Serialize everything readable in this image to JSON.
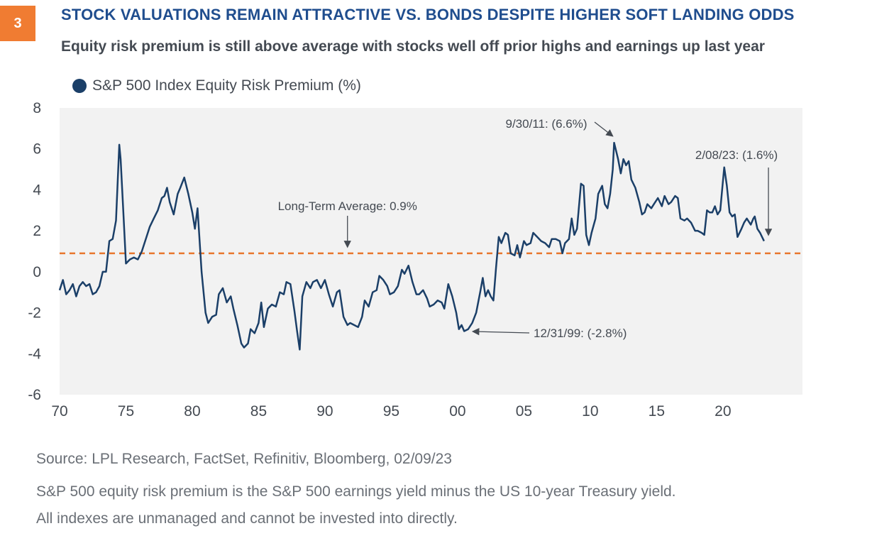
{
  "header": {
    "badge": "3",
    "title": "STOCK VALUATIONS REMAIN ATTRACTIVE VS. BONDS DESPITE HIGHER SOFT LANDING ODDS",
    "subtitle": "Equity risk premium is still above average with stocks well off prior highs and earnings up last year"
  },
  "colors": {
    "badge": "#f07c32",
    "title": "#1f4d8e",
    "series": "#1b3f68",
    "average_line": "#e8772e",
    "plot_background": "#f2f2f2",
    "text": "#444a52",
    "footnote": "#6a6f76"
  },
  "chart_data": {
    "type": "line",
    "title": "",
    "xlabel": "",
    "ylabel": "",
    "legend": "top-left",
    "grid": false,
    "ylim": [
      -6,
      8
    ],
    "xlim": [
      1970,
      2026
    ],
    "x_ticks": [
      1970,
      1975,
      1980,
      1985,
      1990,
      1995,
      2000,
      2005,
      2010,
      2015,
      2020
    ],
    "x_tick_labels": [
      "70",
      "75",
      "80",
      "85",
      "90",
      "95",
      "00",
      "05",
      "10",
      "15",
      "20"
    ],
    "y_ticks": [
      8,
      6,
      4,
      2,
      0,
      -2,
      -4,
      -6
    ],
    "y_tick_labels": [
      "8",
      "6",
      "4",
      "2",
      "0",
      "-2",
      "-4",
      "-6"
    ],
    "series": [
      {
        "name": "S&P 500 Index Equity Risk Premium (%)",
        "points": [
          [
            1970.0,
            -0.9
          ],
          [
            1970.25,
            -0.4
          ],
          [
            1970.5,
            -1.1
          ],
          [
            1970.75,
            -0.9
          ],
          [
            1971.0,
            -0.6
          ],
          [
            1971.25,
            -1.2
          ],
          [
            1971.5,
            -0.7
          ],
          [
            1971.75,
            -0.5
          ],
          [
            1972.0,
            -0.7
          ],
          [
            1972.25,
            -0.6
          ],
          [
            1972.5,
            -1.1
          ],
          [
            1972.75,
            -1.0
          ],
          [
            1973.0,
            -0.7
          ],
          [
            1973.25,
            0.0
          ],
          [
            1973.5,
            0.0
          ],
          [
            1973.75,
            1.5
          ],
          [
            1974.0,
            1.6
          ],
          [
            1974.25,
            2.5
          ],
          [
            1974.5,
            6.2
          ],
          [
            1974.6,
            5.5
          ],
          [
            1974.8,
            3.0
          ],
          [
            1975.0,
            0.4
          ],
          [
            1975.3,
            0.6
          ],
          [
            1975.6,
            0.7
          ],
          [
            1975.9,
            0.6
          ],
          [
            1976.2,
            1.0
          ],
          [
            1976.5,
            1.6
          ],
          [
            1976.8,
            2.2
          ],
          [
            1977.1,
            2.6
          ],
          [
            1977.4,
            3.0
          ],
          [
            1977.7,
            3.6
          ],
          [
            1977.9,
            3.7
          ],
          [
            1978.1,
            4.1
          ],
          [
            1978.3,
            3.4
          ],
          [
            1978.6,
            2.8
          ],
          [
            1978.9,
            3.8
          ],
          [
            1979.1,
            4.1
          ],
          [
            1979.4,
            4.6
          ],
          [
            1979.7,
            3.8
          ],
          [
            1980.0,
            2.9
          ],
          [
            1980.2,
            2.1
          ],
          [
            1980.4,
            3.1
          ],
          [
            1980.7,
            0.0
          ],
          [
            1981.0,
            -2.0
          ],
          [
            1981.2,
            -2.5
          ],
          [
            1981.5,
            -2.2
          ],
          [
            1981.8,
            -2.1
          ],
          [
            1982.0,
            -1.1
          ],
          [
            1982.3,
            -0.8
          ],
          [
            1982.6,
            -1.5
          ],
          [
            1982.9,
            -1.2
          ],
          [
            1983.1,
            -1.8
          ],
          [
            1983.4,
            -2.6
          ],
          [
            1983.7,
            -3.5
          ],
          [
            1983.9,
            -3.7
          ],
          [
            1984.2,
            -3.5
          ],
          [
            1984.4,
            -2.8
          ],
          [
            1984.7,
            -3.0
          ],
          [
            1985.0,
            -2.5
          ],
          [
            1985.2,
            -1.5
          ],
          [
            1985.4,
            -2.7
          ],
          [
            1985.7,
            -1.8
          ],
          [
            1986.0,
            -1.6
          ],
          [
            1986.3,
            -1.7
          ],
          [
            1986.6,
            -1.0
          ],
          [
            1986.9,
            -1.1
          ],
          [
            1987.1,
            -0.5
          ],
          [
            1987.4,
            -0.6
          ],
          [
            1987.7,
            -1.9
          ],
          [
            1987.9,
            -2.9
          ],
          [
            1988.1,
            -3.8
          ],
          [
            1988.3,
            -1.2
          ],
          [
            1988.6,
            -0.5
          ],
          [
            1988.9,
            -0.8
          ],
          [
            1989.1,
            -0.5
          ],
          [
            1989.4,
            -0.4
          ],
          [
            1989.7,
            -0.8
          ],
          [
            1990.0,
            -0.4
          ],
          [
            1990.3,
            -1.1
          ],
          [
            1990.6,
            -1.7
          ],
          [
            1990.9,
            -1.0
          ],
          [
            1991.1,
            -0.9
          ],
          [
            1991.4,
            -2.2
          ],
          [
            1991.7,
            -2.6
          ],
          [
            1991.9,
            -2.5
          ],
          [
            1992.2,
            -2.6
          ],
          [
            1992.5,
            -2.7
          ],
          [
            1992.8,
            -2.2
          ],
          [
            1993.0,
            -1.4
          ],
          [
            1993.3,
            -1.7
          ],
          [
            1993.6,
            -1.0
          ],
          [
            1993.9,
            -0.9
          ],
          [
            1994.1,
            -0.2
          ],
          [
            1994.4,
            -0.4
          ],
          [
            1994.7,
            -0.7
          ],
          [
            1994.9,
            -1.1
          ],
          [
            1995.2,
            -1.0
          ],
          [
            1995.5,
            -0.7
          ],
          [
            1995.8,
            0.1
          ],
          [
            1996.0,
            -0.1
          ],
          [
            1996.3,
            0.3
          ],
          [
            1996.6,
            -0.5
          ],
          [
            1996.9,
            -1.1
          ],
          [
            1997.1,
            -1.1
          ],
          [
            1997.4,
            -0.9
          ],
          [
            1997.7,
            -1.3
          ],
          [
            1997.9,
            -1.7
          ],
          [
            1998.2,
            -1.6
          ],
          [
            1998.5,
            -1.4
          ],
          [
            1998.8,
            -1.5
          ],
          [
            1999.0,
            -1.8
          ],
          [
            1999.3,
            -0.6
          ],
          [
            1999.6,
            -1.2
          ],
          [
            1999.9,
            -2.0
          ],
          [
            2000.1,
            -2.8
          ],
          [
            2000.3,
            -2.6
          ],
          [
            2000.5,
            -2.9
          ],
          [
            2000.8,
            -2.8
          ],
          [
            2001.1,
            -2.5
          ],
          [
            2001.4,
            -2.0
          ],
          [
            2001.7,
            -1.0
          ],
          [
            2001.9,
            -0.3
          ],
          [
            2002.1,
            -1.2
          ],
          [
            2002.3,
            -0.9
          ],
          [
            2002.5,
            -1.2
          ],
          [
            2002.7,
            -1.4
          ],
          [
            2002.9,
            0.2
          ],
          [
            2003.1,
            1.7
          ],
          [
            2003.3,
            1.4
          ],
          [
            2003.6,
            1.9
          ],
          [
            2003.8,
            1.8
          ],
          [
            2004.0,
            0.9
          ],
          [
            2004.3,
            0.8
          ],
          [
            2004.5,
            1.3
          ],
          [
            2004.7,
            0.7
          ],
          [
            2005.0,
            1.5
          ],
          [
            2005.2,
            1.3
          ],
          [
            2005.5,
            1.4
          ],
          [
            2005.7,
            1.9
          ],
          [
            2006.0,
            1.7
          ],
          [
            2006.3,
            1.5
          ],
          [
            2006.6,
            1.4
          ],
          [
            2006.9,
            1.2
          ],
          [
            2007.1,
            1.6
          ],
          [
            2007.4,
            1.6
          ],
          [
            2007.7,
            1.5
          ],
          [
            2007.9,
            0.9
          ],
          [
            2008.1,
            1.4
          ],
          [
            2008.4,
            1.6
          ],
          [
            2008.6,
            2.6
          ],
          [
            2008.8,
            1.8
          ],
          [
            2009.0,
            2.1
          ],
          [
            2009.3,
            4.3
          ],
          [
            2009.5,
            4.2
          ],
          [
            2009.7,
            1.8
          ],
          [
            2009.9,
            1.3
          ],
          [
            2010.1,
            1.9
          ],
          [
            2010.4,
            2.6
          ],
          [
            2010.6,
            3.8
          ],
          [
            2010.9,
            4.2
          ],
          [
            2011.1,
            3.3
          ],
          [
            2011.3,
            3.1
          ],
          [
            2011.5,
            3.8
          ],
          [
            2011.7,
            5.0
          ],
          [
            2011.8,
            6.3
          ],
          [
            2012.1,
            5.5
          ],
          [
            2012.3,
            4.8
          ],
          [
            2012.5,
            5.5
          ],
          [
            2012.7,
            5.2
          ],
          [
            2012.9,
            5.4
          ],
          [
            2013.1,
            4.5
          ],
          [
            2013.4,
            4.1
          ],
          [
            2013.7,
            3.4
          ],
          [
            2013.9,
            2.8
          ],
          [
            2014.1,
            2.9
          ],
          [
            2014.3,
            3.3
          ],
          [
            2014.6,
            3.1
          ],
          [
            2014.8,
            3.3
          ],
          [
            2015.1,
            3.6
          ],
          [
            2015.4,
            3.2
          ],
          [
            2015.6,
            3.7
          ],
          [
            2015.9,
            3.3
          ],
          [
            2016.1,
            3.4
          ],
          [
            2016.4,
            3.7
          ],
          [
            2016.6,
            3.6
          ],
          [
            2016.8,
            2.6
          ],
          [
            2017.1,
            2.5
          ],
          [
            2017.3,
            2.6
          ],
          [
            2017.6,
            2.4
          ],
          [
            2017.9,
            2.0
          ],
          [
            2018.1,
            2.0
          ],
          [
            2018.4,
            1.9
          ],
          [
            2018.6,
            1.8
          ],
          [
            2018.8,
            3.0
          ],
          [
            2019.0,
            2.9
          ],
          [
            2019.2,
            2.9
          ],
          [
            2019.4,
            3.2
          ],
          [
            2019.6,
            2.8
          ],
          [
            2019.8,
            3.0
          ],
          [
            2020.0,
            4.4
          ],
          [
            2020.1,
            5.1
          ],
          [
            2020.3,
            4.2
          ],
          [
            2020.5,
            2.9
          ],
          [
            2020.7,
            2.7
          ],
          [
            2020.9,
            2.8
          ],
          [
            2021.1,
            1.7
          ],
          [
            2021.4,
            2.1
          ],
          [
            2021.6,
            2.4
          ],
          [
            2021.8,
            2.6
          ],
          [
            2022.1,
            2.3
          ],
          [
            2022.3,
            2.6
          ],
          [
            2022.4,
            2.7
          ],
          [
            2022.6,
            2.1
          ],
          [
            2022.8,
            1.9
          ],
          [
            2023.1,
            1.5
          ]
        ]
      }
    ],
    "average": {
      "label": "Long-Term Average: 0.9%",
      "value": 0.9
    },
    "annotations": [
      {
        "text": "9/30/11: (6.6%)",
        "x": 2011.75,
        "y": 6.6
      },
      {
        "text": "2/08/23: (1.6%)",
        "x": 2023.1,
        "y": 1.6
      },
      {
        "text": "12/31/99: (-2.8%)",
        "x": 2000.0,
        "y": -2.8
      }
    ]
  },
  "footer": {
    "source": "Source: LPL Research, FactSet, Refinitiv, Bloomberg,  02/09/23",
    "note1": "S&P 500 equity risk premium is the S&P 500 earnings yield minus the US 10-year Treasury yield.",
    "note2": "All indexes are unmanaged and cannot be invested into directly."
  }
}
